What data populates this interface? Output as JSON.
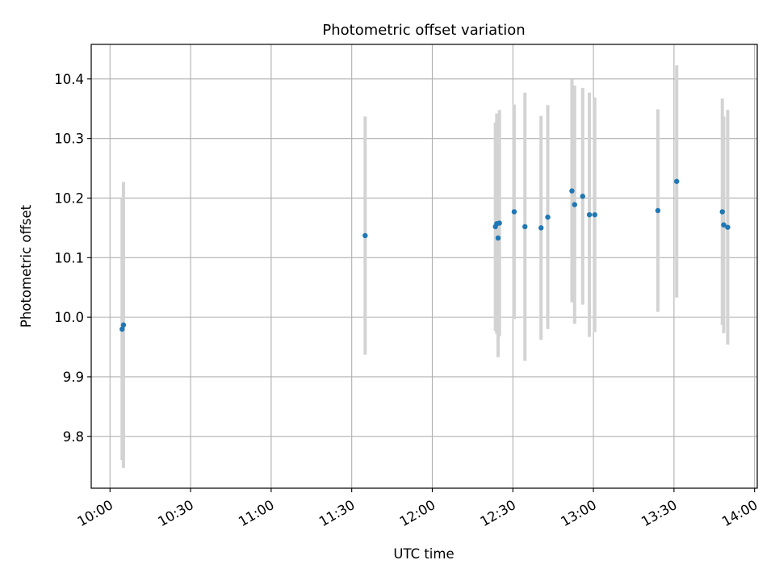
{
  "chart_data": {
    "type": "scatter",
    "title": "Photometric offset variation",
    "xlabel": "UTC time",
    "ylabel": "Photometric offset",
    "xlim": [
      "09:53",
      "14:01"
    ],
    "ylim": [
      9.713,
      10.458
    ],
    "x_ticks": [
      "10:00",
      "10:30",
      "11:00",
      "11:30",
      "12:00",
      "12:30",
      "13:00",
      "13:30",
      "14:00"
    ],
    "y_ticks": [
      9.8,
      9.9,
      10.0,
      10.1,
      10.2,
      10.3,
      10.4
    ],
    "grid": true,
    "colors": {
      "points": "#1f77b4",
      "errorbars": "#d3d3d3",
      "grid": "#b0b0b0"
    },
    "points": [
      {
        "x": "10:04:30",
        "y": 9.98,
        "yerr": 0.22
      },
      {
        "x": "10:05:00",
        "y": 9.987,
        "yerr": 0.24
      },
      {
        "x": "11:35:00",
        "y": 10.137,
        "yerr": 0.2
      },
      {
        "x": "12:23:30",
        "y": 10.152,
        "yerr": 0.175
      },
      {
        "x": "12:24:00",
        "y": 10.157,
        "yerr": 0.185
      },
      {
        "x": "12:24:30",
        "y": 10.133,
        "yerr": 0.2
      },
      {
        "x": "12:25:00",
        "y": 10.158,
        "yerr": 0.19
      },
      {
        "x": "12:30:30",
        "y": 10.177,
        "yerr": 0.18
      },
      {
        "x": "12:34:30",
        "y": 10.152,
        "yerr": 0.225
      },
      {
        "x": "12:40:30",
        "y": 10.15,
        "yerr": 0.188
      },
      {
        "x": "12:43:00",
        "y": 10.168,
        "yerr": 0.188
      },
      {
        "x": "12:52:00",
        "y": 10.212,
        "yerr": 0.187
      },
      {
        "x": "12:53:00",
        "y": 10.189,
        "yerr": 0.2
      },
      {
        "x": "12:56:00",
        "y": 10.203,
        "yerr": 0.182
      },
      {
        "x": "12:58:30",
        "y": 10.172,
        "yerr": 0.205
      },
      {
        "x": "13:00:30",
        "y": 10.172,
        "yerr": 0.197
      },
      {
        "x": "13:24:00",
        "y": 10.179,
        "yerr": 0.17
      },
      {
        "x": "13:31:00",
        "y": 10.228,
        "yerr": 0.195
      },
      {
        "x": "13:48:00",
        "y": 10.177,
        "yerr": 0.19
      },
      {
        "x": "13:48:30",
        "y": 10.155,
        "yerr": 0.182
      },
      {
        "x": "13:50:00",
        "y": 10.151,
        "yerr": 0.197
      }
    ]
  }
}
